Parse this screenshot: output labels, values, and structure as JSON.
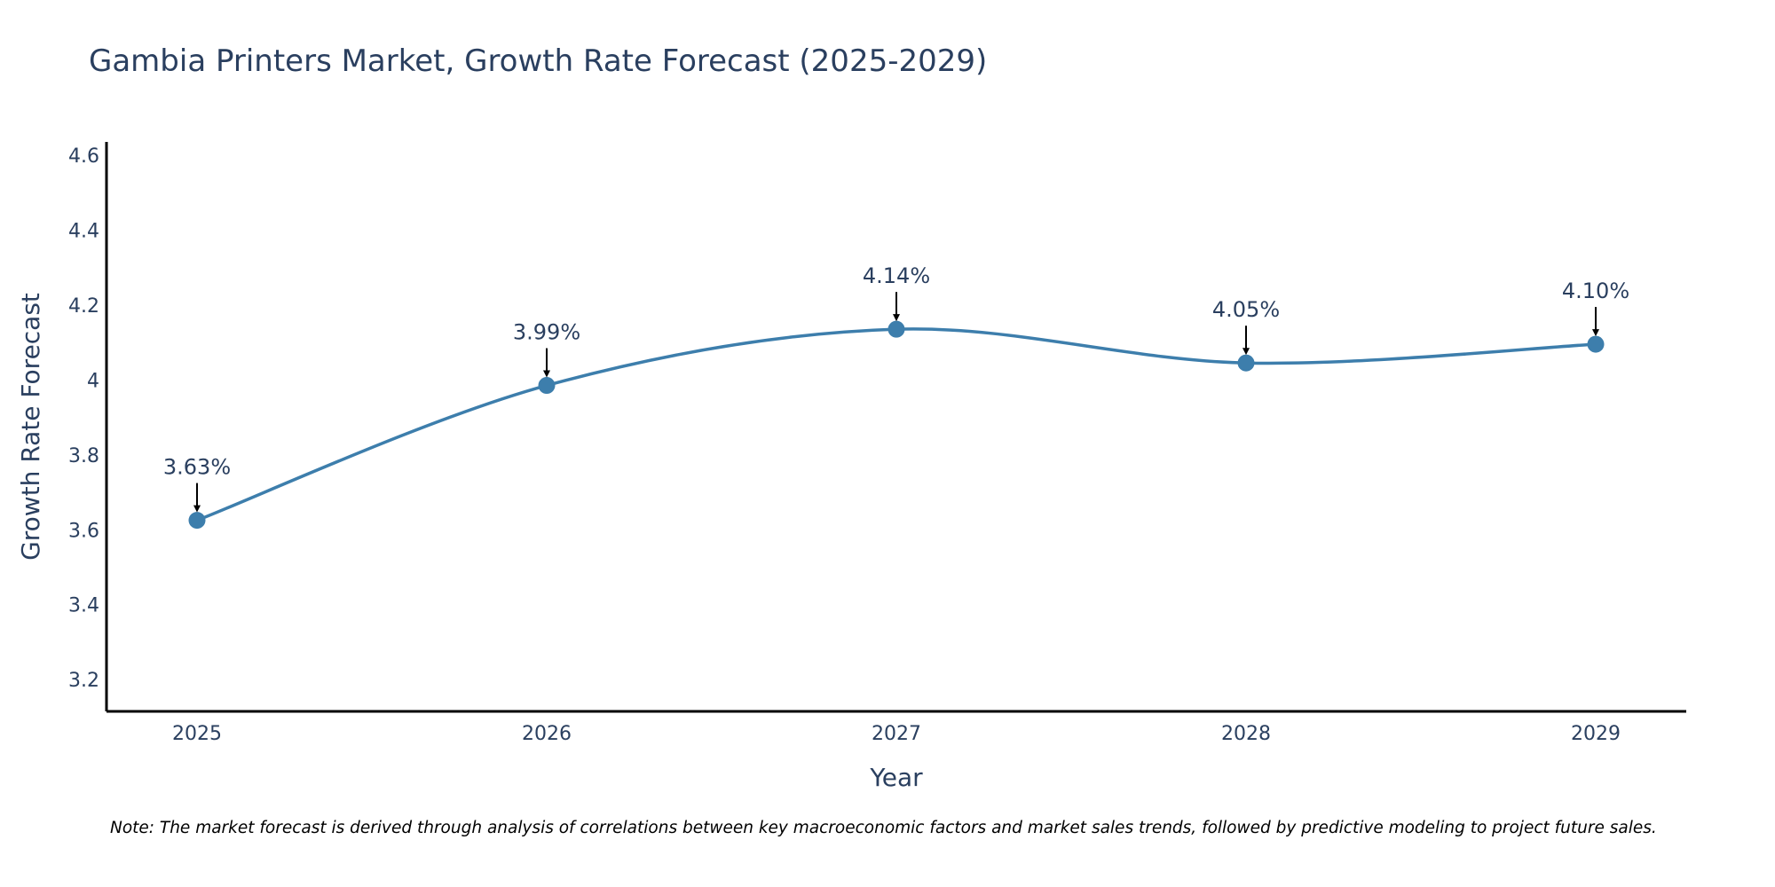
{
  "chart_data": {
    "type": "line",
    "title": "Gambia Printers Market, Growth Rate Forecast (2025-2029)",
    "xlabel": "Year",
    "ylabel": "Growth Rate Forecast",
    "categories": [
      "2025",
      "2026",
      "2027",
      "2028",
      "2029"
    ],
    "series": [
      {
        "name": "Growth Rate Forecast",
        "values": [
          3.63,
          3.99,
          4.14,
          4.05,
          4.1
        ]
      }
    ],
    "data_labels": [
      "3.63%",
      "3.99%",
      "4.14%",
      "4.05%",
      "4.10%"
    ],
    "ylim": [
      3.12,
      4.64
    ],
    "y_ticks": [
      3.2,
      3.4,
      3.6,
      3.8,
      4.0,
      4.2,
      4.4,
      4.6
    ],
    "y_tick_labels": [
      "3.2",
      "3.4",
      "3.6",
      "3.8",
      "4",
      "4.2",
      "4.4",
      "4.6"
    ],
    "grid": false,
    "line_color": "#3d7eac",
    "marker_color": "#3d7eac",
    "arrow_color": "#000000",
    "text_color": "#2a3f5f",
    "axis_color": "#000000",
    "note": "Note: The market forecast is derived through analysis of correlations between key macroeconomic factors and market sales trends, followed by predictive modeling to project future sales."
  }
}
